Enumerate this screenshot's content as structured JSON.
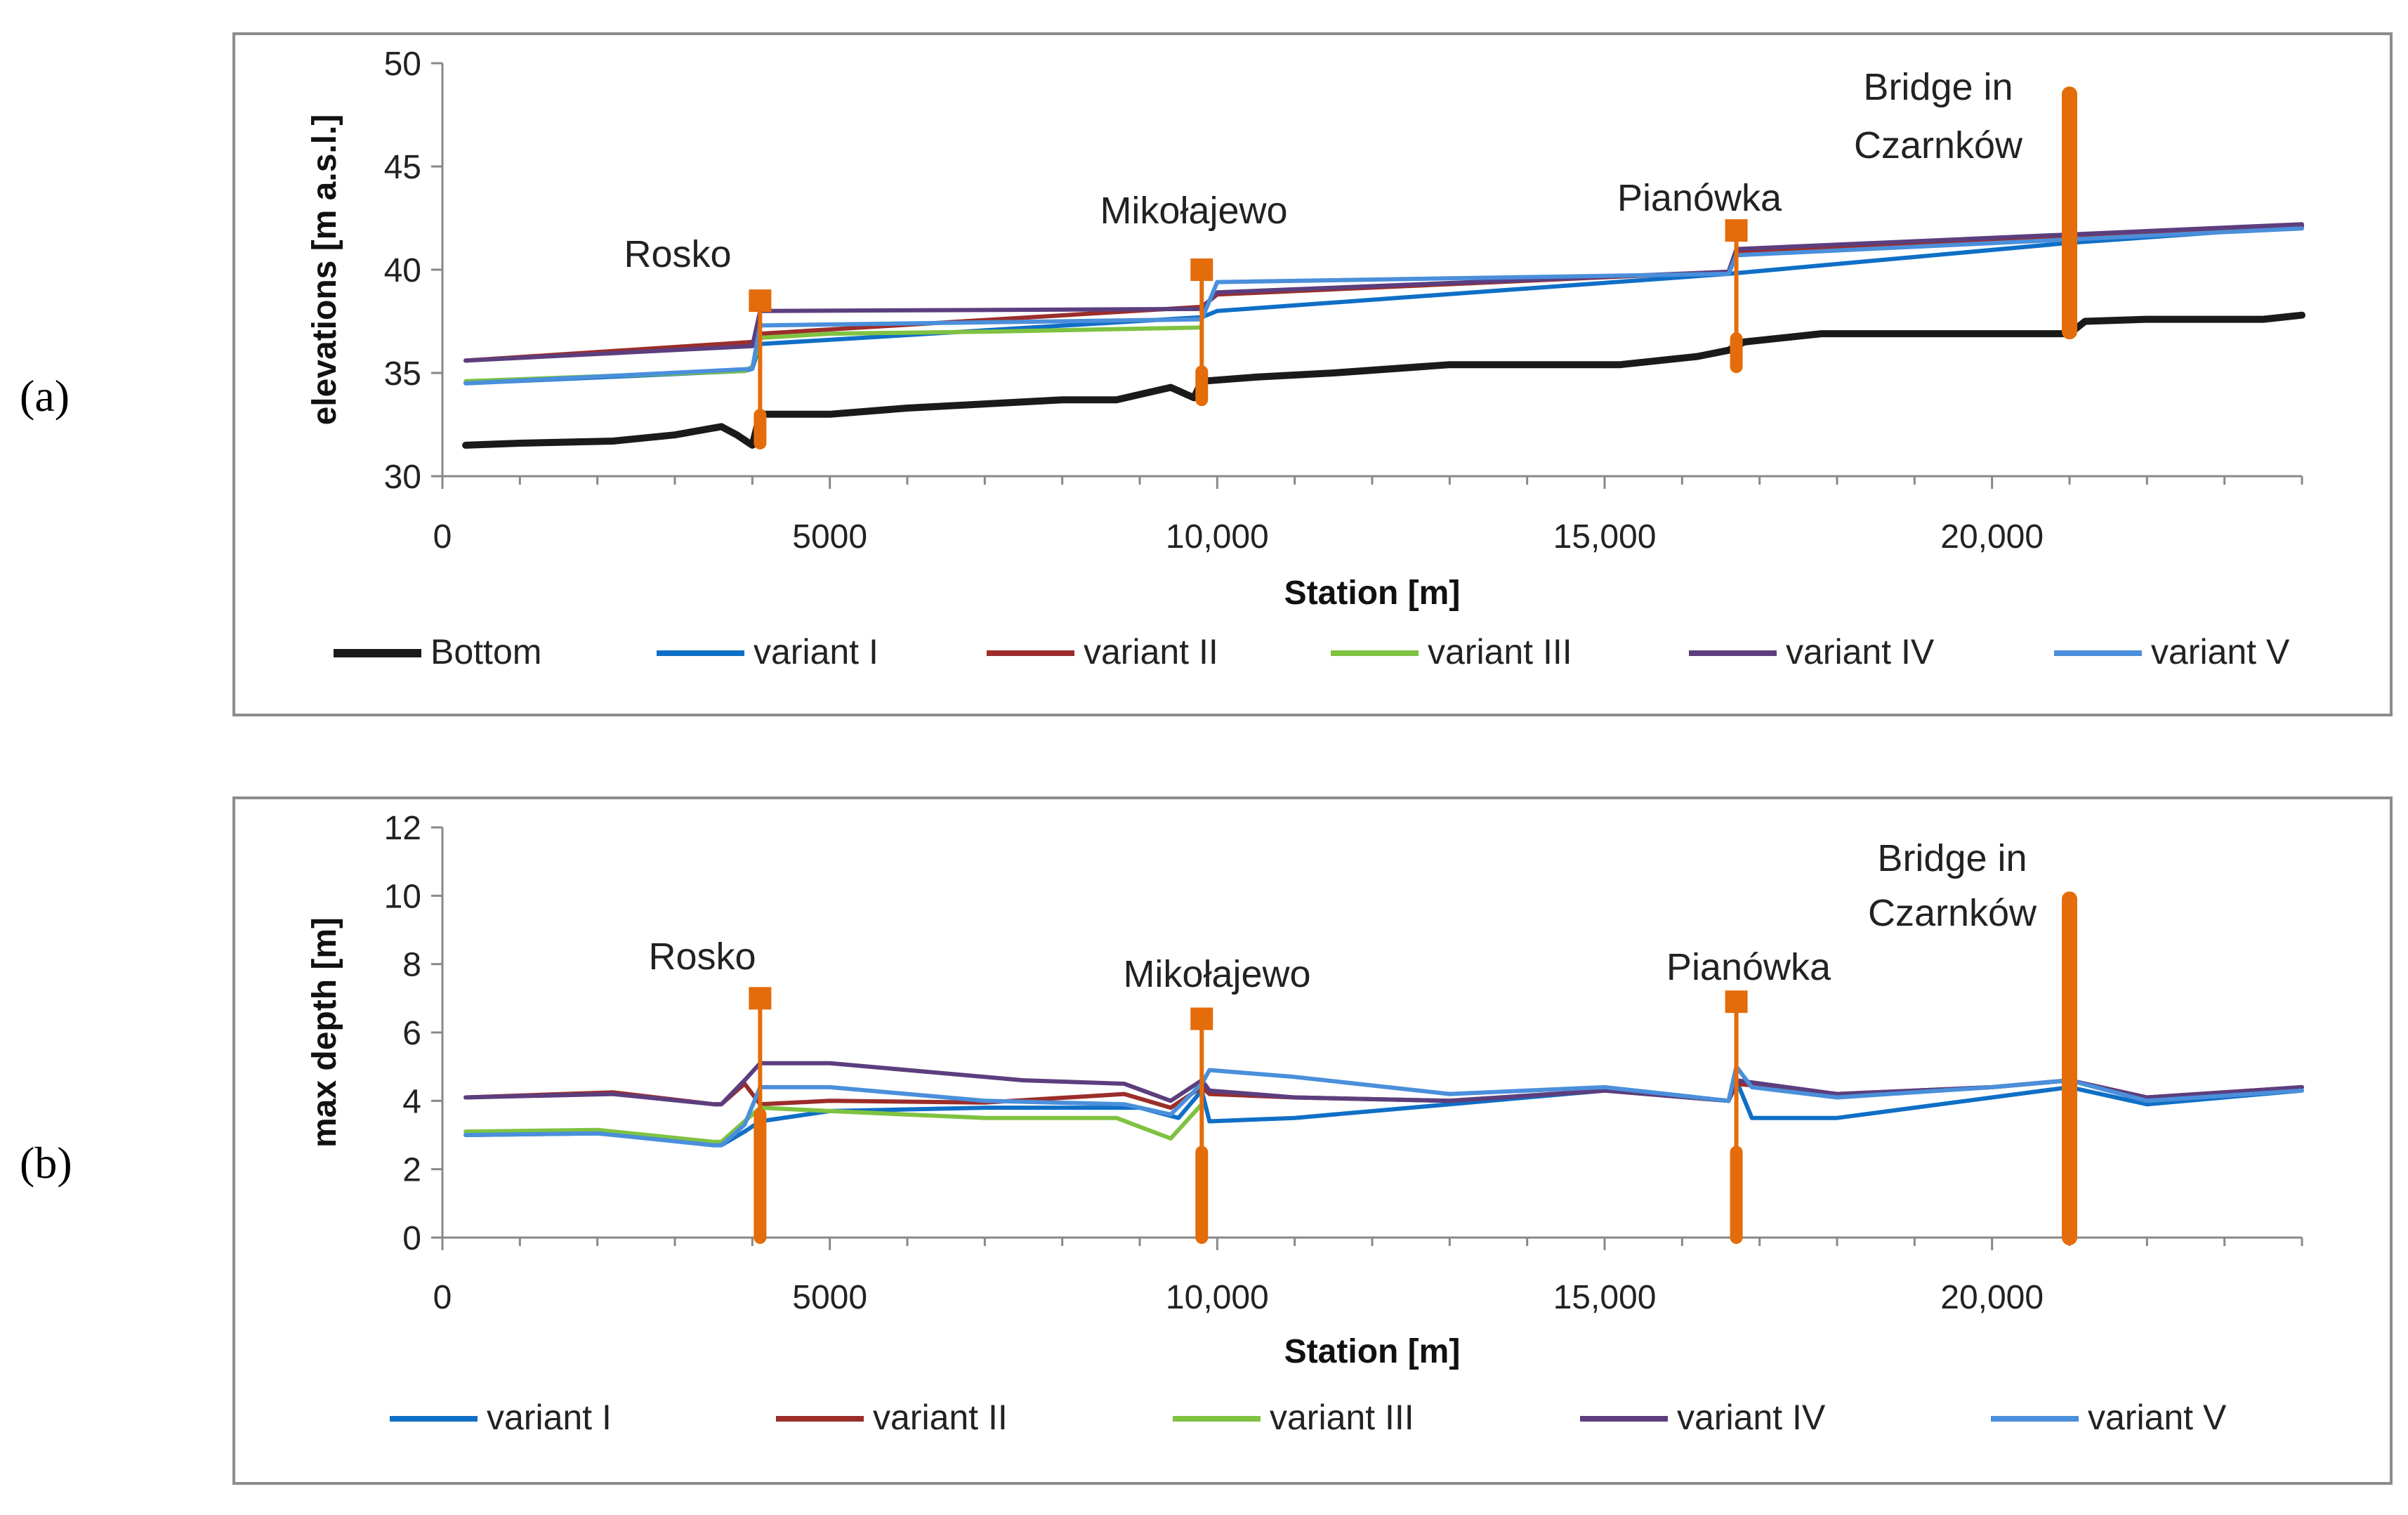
{
  "panel_labels": [
    "(a)",
    "(b)"
  ],
  "chart_data": [
    {
      "type": "line",
      "panel_label": "(a)",
      "xlabel": "Station [m]",
      "ylabel": "elevations [m a.s.l.]",
      "xlim": [
        0,
        24000
      ],
      "ylim": [
        30,
        50
      ],
      "xticks": [
        0,
        5000,
        10000,
        15000,
        20000
      ],
      "xtick_labels": [
        "0",
        "5000",
        "10,000",
        "15,000",
        "20,000"
      ],
      "yticks": [
        30,
        35,
        40,
        45,
        50
      ],
      "ytick_labels": [
        "30",
        "35",
        "40",
        "45",
        "50"
      ],
      "legend_position": "bottom",
      "series": [
        {
          "name": "Bottom",
          "color": "#1a1a1a",
          "width": 10,
          "x": [
            300,
            1000,
            2200,
            3000,
            3600,
            3800,
            4000,
            4100,
            5000,
            6000,
            7000,
            8000,
            8700,
            9400,
            9700,
            9800,
            10500,
            11500,
            13000,
            14000,
            15200,
            16200,
            16600,
            16800,
            17800,
            19000,
            21000,
            21200,
            22000,
            23500,
            24000
          ],
          "y": [
            31.5,
            31.6,
            31.7,
            32.0,
            32.4,
            32.0,
            31.5,
            33.0,
            33.0,
            33.3,
            33.5,
            33.7,
            33.7,
            34.3,
            33.8,
            34.6,
            34.8,
            35.0,
            35.4,
            35.4,
            35.4,
            35.8,
            36.1,
            36.5,
            36.9,
            36.9,
            36.9,
            37.5,
            37.6,
            37.6,
            37.8
          ]
        },
        {
          "name": "variant I",
          "color": "#0f6fc6",
          "width": 6,
          "x": [
            300,
            3900,
            4000,
            4100,
            9800,
            10000,
            16600,
            21000,
            24000
          ],
          "y": [
            34.5,
            35.1,
            35.2,
            36.4,
            37.7,
            38.0,
            39.8,
            41.3,
            42.1
          ]
        },
        {
          "name": "variant II",
          "color": "#9b2d2a",
          "width": 6,
          "x": [
            300,
            4000,
            4100,
            9800,
            10000,
            16600,
            16700,
            24000
          ],
          "y": [
            35.6,
            36.5,
            36.9,
            38.2,
            38.8,
            39.9,
            40.9,
            42.1
          ]
        },
        {
          "name": "variant III",
          "color": "#7fc241",
          "width": 6,
          "x": [
            300,
            3900,
            4000,
            4100,
            5000,
            7000,
            9800
          ],
          "y": [
            34.6,
            35.1,
            35.3,
            36.7,
            36.9,
            37.0,
            37.2
          ]
        },
        {
          "name": "variant IV",
          "color": "#5c3e7e",
          "width": 6,
          "x": [
            300,
            4000,
            4100,
            9800,
            10000,
            16600,
            16700,
            24000
          ],
          "y": [
            35.6,
            36.3,
            38.0,
            38.1,
            38.9,
            39.9,
            41.0,
            42.2
          ]
        },
        {
          "name": "variant V",
          "color": "#4a8fdb",
          "width": 6,
          "x": [
            300,
            4000,
            4100,
            9800,
            10000,
            16600,
            16700,
            24000
          ],
          "y": [
            34.5,
            35.2,
            37.3,
            37.6,
            39.4,
            39.8,
            40.7,
            42.0
          ]
        }
      ],
      "structures": [
        {
          "label": "Rosko",
          "x": 4100,
          "y_bottom": 31.6,
          "y_top": 38.5
        },
        {
          "label": "Mikołajewo",
          "x": 9800,
          "y_bottom": 33.7,
          "y_top": 40.0
        },
        {
          "label": "Pianówka",
          "x": 16700,
          "y_bottom": 35.3,
          "y_top": 41.9
        },
        {
          "label": "Bridge in\nCzarnków",
          "x": 21000,
          "y_bottom": 37.0,
          "y_top": 48.5
        }
      ]
    },
    {
      "type": "line",
      "panel_label": "(b)",
      "xlabel": "Station [m]",
      "ylabel": "max depth [m]",
      "xlim": [
        0,
        24000
      ],
      "ylim": [
        0,
        12
      ],
      "xticks": [
        0,
        5000,
        10000,
        15000,
        20000
      ],
      "xtick_labels": [
        "0",
        "5000",
        "10,000",
        "15,000",
        "20,000"
      ],
      "yticks": [
        0,
        2,
        4,
        6,
        8,
        10,
        12
      ],
      "ytick_labels": [
        "0",
        "2",
        "4",
        "6",
        "8",
        "10",
        "12"
      ],
      "legend_position": "bottom",
      "series": [
        {
          "name": "variant I",
          "color": "#0f6fc6",
          "width": 6,
          "x": [
            300,
            2000,
            3500,
            3600,
            3900,
            4100,
            5000,
            7000,
            9000,
            9500,
            9800,
            9900,
            11000,
            13000,
            15000,
            16600,
            16700,
            16900,
            18000,
            20000,
            21000,
            22000,
            24000
          ],
          "y": [
            3.0,
            3.05,
            2.75,
            2.7,
            3.1,
            3.4,
            3.7,
            3.8,
            3.8,
            3.5,
            4.3,
            3.4,
            3.5,
            3.9,
            4.3,
            4.0,
            4.6,
            3.5,
            3.5,
            4.1,
            4.4,
            3.9,
            4.3
          ]
        },
        {
          "name": "variant II",
          "color": "#9b2d2a",
          "width": 6,
          "x": [
            300,
            2200,
            3500,
            3600,
            3900,
            4100,
            5000,
            7000,
            8800,
            9400,
            9800,
            9900,
            11000,
            13000,
            15000,
            16600,
            16700,
            18000,
            20000,
            21000,
            22000,
            24000
          ],
          "y": [
            4.1,
            4.25,
            3.9,
            3.9,
            4.5,
            3.9,
            4.0,
            3.95,
            4.2,
            3.8,
            4.4,
            4.2,
            4.1,
            4.0,
            4.3,
            4.0,
            4.5,
            4.2,
            4.4,
            4.6,
            4.1,
            4.4
          ]
        },
        {
          "name": "variant III",
          "color": "#7fc241",
          "width": 6,
          "x": [
            300,
            2000,
            3500,
            3600,
            3900,
            4100,
            5000,
            7000,
            8700,
            9400,
            9800
          ],
          "y": [
            3.1,
            3.15,
            2.8,
            2.8,
            3.4,
            3.8,
            3.7,
            3.5,
            3.5,
            2.9,
            3.9
          ]
        },
        {
          "name": "variant IV",
          "color": "#5c3e7e",
          "width": 6,
          "x": [
            300,
            2200,
            3500,
            3600,
            3900,
            4100,
            5000,
            6000,
            7500,
            8800,
            9400,
            9800,
            9900,
            11000,
            13000,
            15000,
            16600,
            16700,
            18000,
            20000,
            21000,
            22000,
            24000
          ],
          "y": [
            4.1,
            4.2,
            3.9,
            3.9,
            4.6,
            5.1,
            5.1,
            4.9,
            4.6,
            4.5,
            4.0,
            4.6,
            4.3,
            4.1,
            4.0,
            4.3,
            4.0,
            4.6,
            4.2,
            4.4,
            4.6,
            4.1,
            4.4
          ]
        },
        {
          "name": "variant V",
          "color": "#4a8fdb",
          "width": 6,
          "x": [
            300,
            2000,
            3500,
            3600,
            3900,
            4100,
            5000,
            7000,
            8800,
            9400,
            9800,
            9900,
            11000,
            13000,
            15000,
            16600,
            16700,
            16900,
            18000,
            20000,
            21000,
            22000,
            24000
          ],
          "y": [
            3.0,
            3.05,
            2.7,
            2.7,
            3.3,
            4.4,
            4.4,
            4.0,
            3.9,
            3.6,
            4.5,
            4.9,
            4.7,
            4.2,
            4.4,
            4.0,
            5.0,
            4.4,
            4.1,
            4.4,
            4.6,
            4.0,
            4.3
          ]
        }
      ],
      "structures": [
        {
          "label": "Rosko",
          "x": 4100,
          "y_bottom": 0,
          "y_top": 7.0
        },
        {
          "label": "Mikołajewo",
          "x": 9800,
          "y_bottom": 0,
          "y_top": 6.4
        },
        {
          "label": "Pianówka",
          "x": 16700,
          "y_bottom": 0,
          "y_top": 6.9
        },
        {
          "label": "Bridge in\nCzarnków",
          "x": 21000,
          "y_bottom": 0,
          "y_top": 9.9
        }
      ]
    }
  ]
}
